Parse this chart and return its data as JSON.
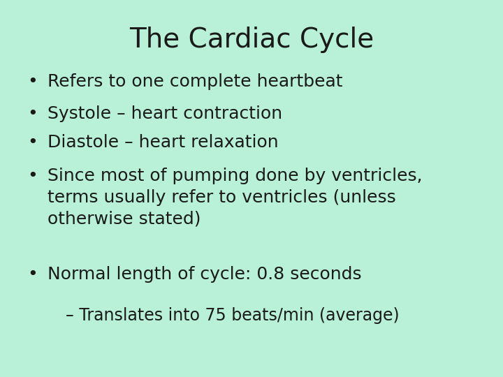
{
  "title": "The Cardiac Cycle",
  "background_color": "#b8f0d8",
  "title_fontsize": 28,
  "text_color": "#1a1a1a",
  "bullet_items": [
    "Refers to one complete heartbeat",
    "Systole – heart contraction",
    "Diastole – heart relaxation",
    "Since most of pumping done by ventricles,\nterms usually refer to ventricles (unless\notherwise stated)",
    "Normal length of cycle: 0.8 seconds"
  ],
  "sub_item": "– Translates into 75 beats/min (average)",
  "bullet_fontsize": 18,
  "sub_fontsize": 17,
  "bullet_char": "•"
}
